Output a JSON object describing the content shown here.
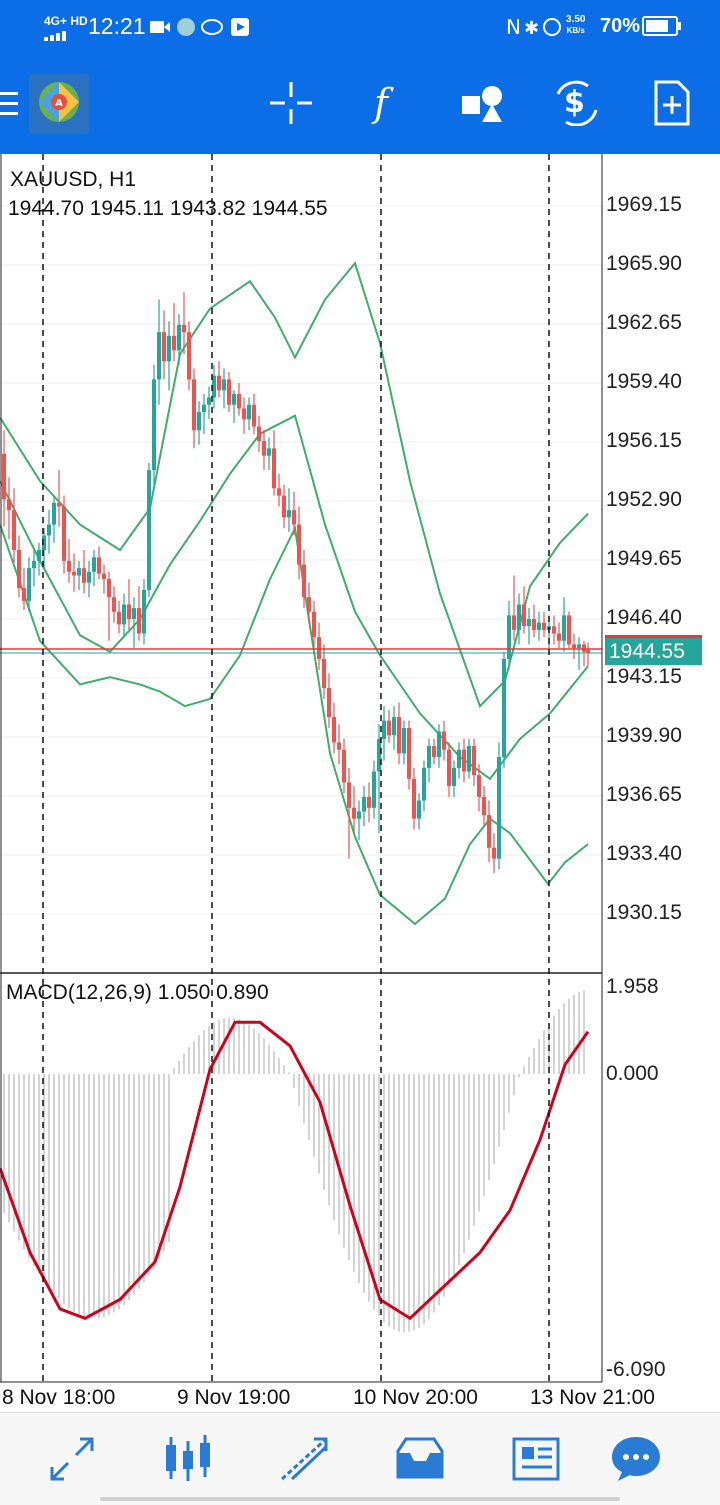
{
  "status_bar": {
    "network": "4G+ HD",
    "time": "12:21",
    "speed_top": "3.50",
    "speed_bottom": "KB/s",
    "battery": "70%"
  },
  "toolbar": {
    "icons": [
      "menu-icon",
      "app-logo",
      "crosshair-icon",
      "indicators-icon",
      "objects-icon",
      "symbols-icon",
      "new-order-icon"
    ]
  },
  "chart": {
    "symbol_label": "XAUUSD, H1",
    "ohlc": "1944.70 1945.11 1943.82 1944.55",
    "current_price": "1944.55",
    "price_ticks": [
      "1969.15",
      "1965.90",
      "1962.65",
      "1959.40",
      "1956.15",
      "1952.90",
      "1949.65",
      "1946.40",
      "1943.15",
      "1939.90",
      "1936.65",
      "1933.40",
      "1930.15"
    ],
    "time_labels": [
      "8 Nov 18:00",
      "9 Nov 19:00",
      "10 Nov 20:00",
      "13 Nov 21:00"
    ],
    "colors": {
      "bull": "#26a69a",
      "bear": "#ef5350",
      "band": "#3fae6a",
      "price_line": "#e53935",
      "macd_line": "#d0021b",
      "hist": "#b8b8b8"
    }
  },
  "macd": {
    "label": "MACD(12,26,9) 1.050 0.890",
    "ticks": [
      "1.958",
      "0.000",
      "-6.090"
    ]
  },
  "bottom_nav": {
    "items": [
      "quotes-icon",
      "chart-icon",
      "trade-icon",
      "history-icon",
      "news-icon",
      "messages-icon"
    ],
    "active": "chart-icon"
  }
}
